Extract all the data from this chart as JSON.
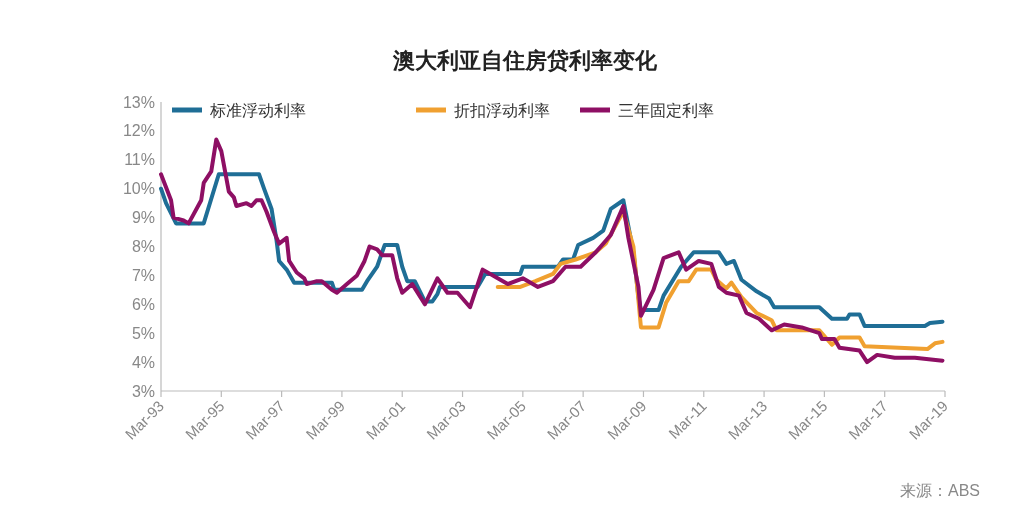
{
  "chart_data": {
    "type": "line",
    "title": "澳大利亚自住房贷利率变化",
    "xlim": [
      "1993-03",
      "2019-03"
    ],
    "xticks": [
      {
        "value": "1993-03",
        "label": "Mar-93"
      },
      {
        "value": "1995-03",
        "label": "Mar-95"
      },
      {
        "value": "1997-03",
        "label": "Mar-97"
      },
      {
        "value": "1999-03",
        "label": "Mar-99"
      },
      {
        "value": "2001-03",
        "label": "Mar-01"
      },
      {
        "value": "2003-03",
        "label": "Mar-03"
      },
      {
        "value": "2005-03",
        "label": "Mar-05"
      },
      {
        "value": "2007-03",
        "label": "Mar-07"
      },
      {
        "value": "2009-03",
        "label": "Mar-09"
      },
      {
        "value": "2011-03",
        "label": "Mar-11"
      },
      {
        "value": "2013-03",
        "label": "Mar-13"
      },
      {
        "value": "2015-03",
        "label": "Mar-15"
      },
      {
        "value": "2017-03",
        "label": "Mar-17"
      },
      {
        "value": "2019-03",
        "label": "Mar-19"
      }
    ],
    "ylim": [
      3,
      13
    ],
    "yticks": [
      {
        "value": 3,
        "label": "3%"
      },
      {
        "value": 4,
        "label": "4%"
      },
      {
        "value": 5,
        "label": "5%"
      },
      {
        "value": 6,
        "label": "6%"
      },
      {
        "value": 7,
        "label": "7%"
      },
      {
        "value": 8,
        "label": "8%"
      },
      {
        "value": 9,
        "label": "9%"
      },
      {
        "value": 10,
        "label": "10%"
      },
      {
        "value": 11,
        "label": "11%"
      },
      {
        "value": 12,
        "label": "12%"
      },
      {
        "value": 13,
        "label": "13%"
      }
    ],
    "grid": false,
    "legend": "top",
    "marker": "none",
    "line_style": "solid",
    "annotations": [
      "来源：ABS"
    ],
    "series": [
      {
        "name": "标准浮动利率",
        "color": "#1f6e96",
        "x": [
          "1993-03",
          "1993-05",
          "1993-09",
          "1994-08",
          "1995-02",
          "1996-06",
          "1996-08",
          "1996-11",
          "1997-01",
          "1997-02",
          "1997-05",
          "1997-08",
          "1998-11",
          "1998-12",
          "1999-11",
          "2000-01",
          "2000-05",
          "2000-07",
          "2000-08",
          "2001-01",
          "2001-03",
          "2001-05",
          "2001-08",
          "2001-12",
          "2002-03",
          "2002-05",
          "2002-06",
          "2003-09",
          "2003-12",
          "2005-02",
          "2005-03",
          "2006-05",
          "2006-07",
          "2006-11",
          "2007-01",
          "2007-07",
          "2007-11",
          "2008-02",
          "2008-07",
          "2008-11",
          "2009-01",
          "2009-02",
          "2009-09",
          "2009-11",
          "2010-06",
          "2010-11",
          "2011-09",
          "2011-12",
          "2012-03",
          "2012-06",
          "2012-12",
          "2013-05",
          "2013-07",
          "2015-01",
          "2015-06",
          "2015-12",
          "2016-01",
          "2016-05",
          "2016-07",
          "2018-07",
          "2018-09",
          "2019-02"
        ],
        "values": [
          10.0,
          9.5,
          8.8,
          8.8,
          10.5,
          10.5,
          10.0,
          9.3,
          8.2,
          7.5,
          7.2,
          6.75,
          6.75,
          6.5,
          6.5,
          6.8,
          7.3,
          7.8,
          8.05,
          8.05,
          7.3,
          6.8,
          6.8,
          6.1,
          6.1,
          6.35,
          6.6,
          6.6,
          7.05,
          7.05,
          7.3,
          7.3,
          7.55,
          7.55,
          8.05,
          8.3,
          8.55,
          9.3,
          9.6,
          7.8,
          6.25,
          5.8,
          5.8,
          6.3,
          7.3,
          7.8,
          7.8,
          7.4,
          7.5,
          6.85,
          6.45,
          6.2,
          5.9,
          5.9,
          5.5,
          5.5,
          5.65,
          5.65,
          5.25,
          5.25,
          5.35,
          5.4
        ]
      },
      {
        "name": "折扣浮动利率",
        "color": "#f0a030",
        "x": [
          "2004-05",
          "2005-02",
          "2005-08",
          "2006-03",
          "2006-06",
          "2006-12",
          "2007-08",
          "2007-12",
          "2008-05",
          "2008-07",
          "2008-11",
          "2009-02",
          "2009-09",
          "2009-12",
          "2010-05",
          "2010-09",
          "2010-12",
          "2011-06",
          "2011-08",
          "2011-12",
          "2012-02",
          "2012-06",
          "2012-12",
          "2013-06",
          "2013-08",
          "2015-01",
          "2015-06",
          "2015-09",
          "2016-05",
          "2016-07",
          "2018-08",
          "2018-11",
          "2019-02"
        ],
        "values": [
          6.6,
          6.6,
          6.8,
          7.05,
          7.4,
          7.55,
          7.8,
          8.1,
          8.9,
          9.2,
          8.0,
          5.2,
          5.2,
          6.05,
          6.8,
          6.8,
          7.2,
          7.2,
          6.85,
          6.55,
          6.75,
          6.25,
          5.7,
          5.45,
          5.1,
          5.1,
          4.6,
          4.85,
          4.85,
          4.55,
          4.45,
          4.65,
          4.7
        ]
      },
      {
        "name": "三年固定利率",
        "color": "#8e0f64",
        "x": [
          "1993-03",
          "1993-07",
          "1993-08",
          "1993-12",
          "1994-02",
          "1994-07",
          "1994-08",
          "1994-11",
          "1995-01",
          "1995-03",
          "1995-06",
          "1995-08",
          "1995-09",
          "1996-01",
          "1996-03",
          "1996-05",
          "1996-07",
          "1996-09",
          "1996-12",
          "1997-02",
          "1997-05",
          "1997-06",
          "1997-09",
          "1997-12",
          "1998-01",
          "1998-05",
          "1998-07",
          "1998-11",
          "1999-01",
          "1999-05",
          "1999-09",
          "1999-12",
          "2000-02",
          "2000-05",
          "2000-07",
          "2000-11",
          "2001-01",
          "2001-03",
          "2001-07",
          "2001-12",
          "2002-05",
          "2002-09",
          "2003-01",
          "2003-06",
          "2003-11",
          "2004-05",
          "2004-09",
          "2005-03",
          "2005-09",
          "2006-03",
          "2006-08",
          "2007-02",
          "2007-08",
          "2008-02",
          "2008-07",
          "2008-09",
          "2009-01",
          "2009-02",
          "2009-07",
          "2009-11",
          "2010-05",
          "2010-08",
          "2011-01",
          "2011-06",
          "2011-09",
          "2011-12",
          "2012-05",
          "2012-08",
          "2013-01",
          "2013-06",
          "2013-11",
          "2014-06",
          "2015-01",
          "2015-02",
          "2015-07",
          "2015-09",
          "2016-05",
          "2016-08",
          "2016-12",
          "2017-07",
          "2018-03",
          "2019-02"
        ],
        "values": [
          10.5,
          9.6,
          9.0,
          8.9,
          8.8,
          9.6,
          10.2,
          10.6,
          11.7,
          11.3,
          9.9,
          9.7,
          9.4,
          9.5,
          9.4,
          9.6,
          9.6,
          9.2,
          8.5,
          8.1,
          8.3,
          7.5,
          7.1,
          6.9,
          6.7,
          6.8,
          6.8,
          6.5,
          6.4,
          6.7,
          7.0,
          7.5,
          8.0,
          7.9,
          7.7,
          7.7,
          6.9,
          6.4,
          6.7,
          6.0,
          6.9,
          6.4,
          6.4,
          5.9,
          7.2,
          6.9,
          6.7,
          6.9,
          6.6,
          6.8,
          7.3,
          7.3,
          7.8,
          8.4,
          9.4,
          8.3,
          6.6,
          5.6,
          6.5,
          7.6,
          7.8,
          7.2,
          7.5,
          7.4,
          6.6,
          6.4,
          6.3,
          5.7,
          5.5,
          5.1,
          5.3,
          5.2,
          5.0,
          4.8,
          4.8,
          4.5,
          4.4,
          4.0,
          4.25,
          4.15,
          4.15,
          4.05
        ]
      }
    ]
  }
}
